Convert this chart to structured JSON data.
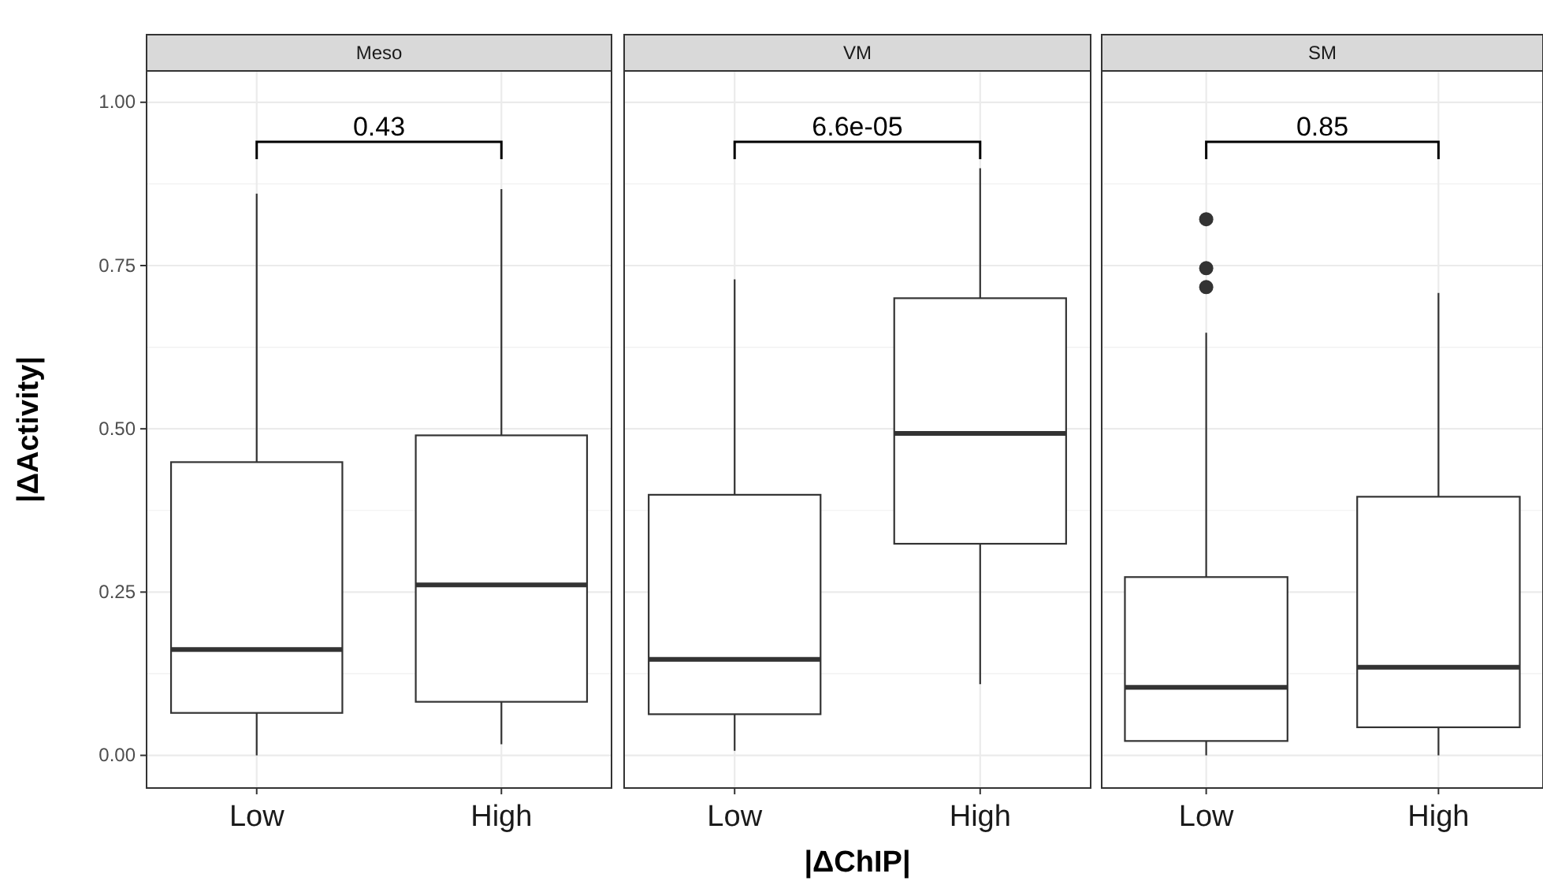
{
  "chart_data": [
    {
      "type": "box",
      "title": "Meso",
      "ylabel": "|ΔActivity|",
      "categories": [
        "Low",
        "High"
      ],
      "ylim": [
        -0.05,
        1.048
      ],
      "yticks": [
        {
          "value": 0,
          "label": "0.00"
        },
        {
          "value": 0.25,
          "label": "0.25"
        },
        {
          "value": 0.5,
          "label": "0.50"
        },
        {
          "value": 0.75,
          "label": "0.75"
        },
        {
          "value": 1,
          "label": "1.00"
        }
      ],
      "grid": true,
      "annotations": [
        "0.43"
      ],
      "boxes": [
        {
          "low": 0.0,
          "q1": 0.065,
          "median": 0.162,
          "q3": 0.449,
          "high": 0.86
        },
        {
          "low": 0.017,
          "q1": 0.082,
          "median": 0.261,
          "q3": 0.49,
          "high": 0.867
        }
      ]
    },
    {
      "type": "box",
      "title": "VM",
      "xlabel": "|ΔChIP|",
      "categories": [
        "Low",
        "High"
      ],
      "ylim": [
        -0.05,
        1.048
      ],
      "grid": true,
      "tick_labels": "x",
      "annotations": [
        "6.6e-05"
      ],
      "boxes": [
        {
          "low": 0.007,
          "q1": 0.063,
          "median": 0.147,
          "q3": 0.399,
          "high": 0.729
        },
        {
          "low": 0.109,
          "q1": 0.324,
          "median": 0.493,
          "q3": 0.7,
          "high": 0.899
        }
      ]
    },
    {
      "type": "box",
      "title": "SM",
      "categories": [
        "Low",
        "High"
      ],
      "ylim": [
        -0.05,
        1.048
      ],
      "grid": true,
      "tick_labels": "x",
      "annotations": [
        "0.85"
      ],
      "boxes": [
        {
          "low": 0.0,
          "q1": 0.022,
          "median": 0.104,
          "q3": 0.273,
          "high": 0.647,
          "outliers": [
            0.821,
            0.746,
            0.717
          ]
        },
        {
          "low": 0.0,
          "q1": 0.043,
          "median": 0.135,
          "q3": 0.396,
          "high": 0.708
        }
      ]
    }
  ]
}
